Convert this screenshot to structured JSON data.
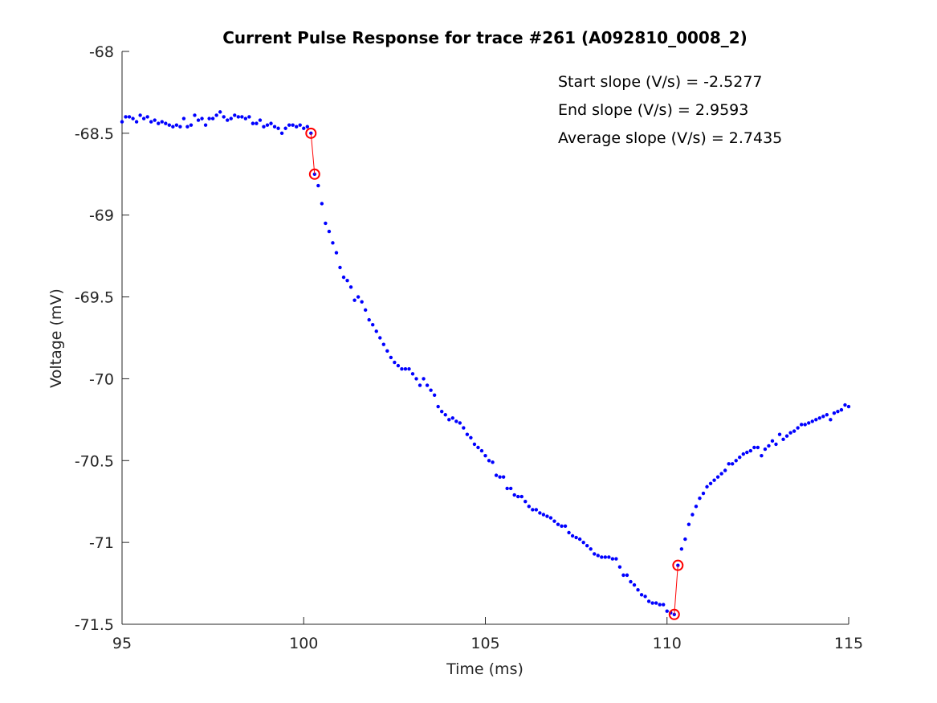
{
  "chart_data": {
    "type": "scatter",
    "title": "Current Pulse Response for trace #261 (A092810_0008_2)",
    "xlabel": "Time (ms)",
    "ylabel": "Voltage (mV)",
    "xlim": [
      95,
      115
    ],
    "xticks": [
      95,
      100,
      105,
      110,
      115
    ],
    "ylim": [
      -71.5,
      -68
    ],
    "yticks": [
      -71.5,
      -71,
      -70.5,
      -70,
      -69.5,
      -69,
      -68.5,
      -68
    ],
    "annotations": [
      "Start slope (V/s) = -2.5277",
      "End slope (V/s) = 2.9593",
      "Average slope (V/s) = 2.7435"
    ],
    "series": [
      {
        "color": "#0000ff",
        "marker": "dot",
        "x": [
          95,
          95.1,
          95.2,
          95.3,
          95.4,
          95.5,
          95.6,
          95.7,
          95.8,
          95.9,
          96,
          96.1,
          96.2,
          96.3,
          96.4,
          96.5,
          96.6,
          96.7,
          96.8,
          96.9,
          97,
          97.1,
          97.2,
          97.3,
          97.4,
          97.5,
          97.6,
          97.7,
          97.8,
          97.9,
          98,
          98.1,
          98.2,
          98.3,
          98.4,
          98.5,
          98.6,
          98.7,
          98.8,
          98.9,
          99,
          99.1,
          99.2,
          99.3,
          99.4,
          99.5,
          99.6,
          99.7,
          99.8,
          99.9,
          100,
          100.1,
          100.2,
          100.3,
          100.4,
          100.5,
          100.6,
          100.7,
          100.8,
          100.9,
          101,
          101.1,
          101.2,
          101.3,
          101.4,
          101.5,
          101.6,
          101.7,
          101.8,
          101.9,
          102,
          102.1,
          102.2,
          102.3,
          102.4,
          102.5,
          102.6,
          102.7,
          102.8,
          102.9,
          103,
          103.1,
          103.2,
          103.3,
          103.4,
          103.5,
          103.6,
          103.7,
          103.8,
          103.9,
          104,
          104.1,
          104.2,
          104.3,
          104.4,
          104.5,
          104.6,
          104.7,
          104.8,
          104.9,
          105,
          105.1,
          105.2,
          105.3,
          105.4,
          105.5,
          105.6,
          105.7,
          105.8,
          105.9,
          106,
          106.1,
          106.2,
          106.3,
          106.4,
          106.5,
          106.6,
          106.7,
          106.8,
          106.9,
          107,
          107.1,
          107.2,
          107.3,
          107.4,
          107.5,
          107.6,
          107.7,
          107.8,
          107.9,
          108,
          108.1,
          108.2,
          108.3,
          108.4,
          108.5,
          108.6,
          108.7,
          108.8,
          108.9,
          109,
          109.1,
          109.2,
          109.3,
          109.4,
          109.5,
          109.6,
          109.7,
          109.8,
          109.9,
          110,
          110.1,
          110.2,
          110.3,
          110.4,
          110.5,
          110.6,
          110.7,
          110.8,
          110.9,
          111,
          111.1,
          111.2,
          111.3,
          111.4,
          111.5,
          111.6,
          111.7,
          111.8,
          111.9,
          112,
          112.1,
          112.2,
          112.3,
          112.4,
          112.5,
          112.6,
          112.7,
          112.8,
          112.9,
          113,
          113.1,
          113.2,
          113.3,
          113.4,
          113.5,
          113.6,
          113.7,
          113.8,
          113.9,
          114,
          114.1,
          114.2,
          114.3,
          114.4,
          114.5,
          114.6,
          114.7,
          114.8,
          114.9,
          115
        ],
        "values": [
          -68.43,
          -68.4,
          -68.4,
          -68.41,
          -68.43,
          -68.39,
          -68.41,
          -68.4,
          -68.43,
          -68.42,
          -68.44,
          -68.43,
          -68.44,
          -68.45,
          -68.46,
          -68.45,
          -68.46,
          -68.41,
          -68.46,
          -68.45,
          -68.39,
          -68.42,
          -68.41,
          -68.45,
          -68.41,
          -68.41,
          -68.39,
          -68.37,
          -68.4,
          -68.42,
          -68.41,
          -68.39,
          -68.4,
          -68.4,
          -68.41,
          -68.4,
          -68.44,
          -68.44,
          -68.42,
          -68.46,
          -68.45,
          -68.44,
          -68.46,
          -68.47,
          -68.5,
          -68.47,
          -68.45,
          -68.45,
          -68.46,
          -68.45,
          -68.47,
          -68.46,
          -68.5,
          -68.75,
          -68.82,
          -68.93,
          -69.05,
          -69.1,
          -69.17,
          -69.23,
          -69.32,
          -69.38,
          -69.4,
          -69.44,
          -69.52,
          -69.5,
          -69.53,
          -69.58,
          -69.64,
          -69.67,
          -69.71,
          -69.75,
          -69.79,
          -69.83,
          -69.87,
          -69.9,
          -69.92,
          -69.94,
          -69.94,
          -69.94,
          -69.97,
          -70.0,
          -70.04,
          -70.0,
          -70.04,
          -70.07,
          -70.1,
          -70.17,
          -70.2,
          -70.22,
          -70.25,
          -70.24,
          -70.26,
          -70.27,
          -70.3,
          -70.34,
          -70.36,
          -70.4,
          -70.42,
          -70.44,
          -70.47,
          -70.5,
          -70.51,
          -70.59,
          -70.6,
          -70.6,
          -70.67,
          -70.67,
          -70.71,
          -70.72,
          -70.72,
          -70.75,
          -70.78,
          -70.8,
          -70.8,
          -70.82,
          -70.83,
          -70.84,
          -70.85,
          -70.87,
          -70.89,
          -70.9,
          -70.9,
          -70.94,
          -70.96,
          -70.97,
          -70.98,
          -71.0,
          -71.02,
          -71.04,
          -71.07,
          -71.08,
          -71.09,
          -71.09,
          -71.09,
          -71.1,
          -71.1,
          -71.15,
          -71.2,
          -71.2,
          -71.24,
          -71.26,
          -71.29,
          -71.32,
          -71.33,
          -71.36,
          -71.37,
          -71.37,
          -71.38,
          -71.38,
          -71.42,
          -71.43,
          -71.44,
          -71.14,
          -71.04,
          -70.98,
          -70.89,
          -70.83,
          -70.78,
          -70.73,
          -70.7,
          -70.66,
          -70.64,
          -70.62,
          -70.6,
          -70.58,
          -70.56,
          -70.52,
          -70.52,
          -70.5,
          -70.48,
          -70.46,
          -70.45,
          -70.44,
          -70.42,
          -70.42,
          -70.47,
          -70.43,
          -70.41,
          -70.38,
          -70.4,
          -70.34,
          -70.37,
          -70.35,
          -70.33,
          -70.32,
          -70.3,
          -70.28,
          -70.28,
          -70.27,
          -70.26,
          -70.25,
          -70.24,
          -70.23,
          -70.22,
          -70.25,
          -70.21,
          -70.2,
          -70.19,
          -70.16,
          -70.17
        ]
      },
      {
        "color": "#ff0000",
        "marker": "circle-line",
        "x": [
          100.2,
          100.3
        ],
        "values": [
          -68.5,
          -68.75
        ]
      },
      {
        "color": "#ff0000",
        "marker": "circle-line",
        "x": [
          110.2,
          110.3
        ],
        "values": [
          -71.44,
          -71.14
        ]
      }
    ]
  }
}
